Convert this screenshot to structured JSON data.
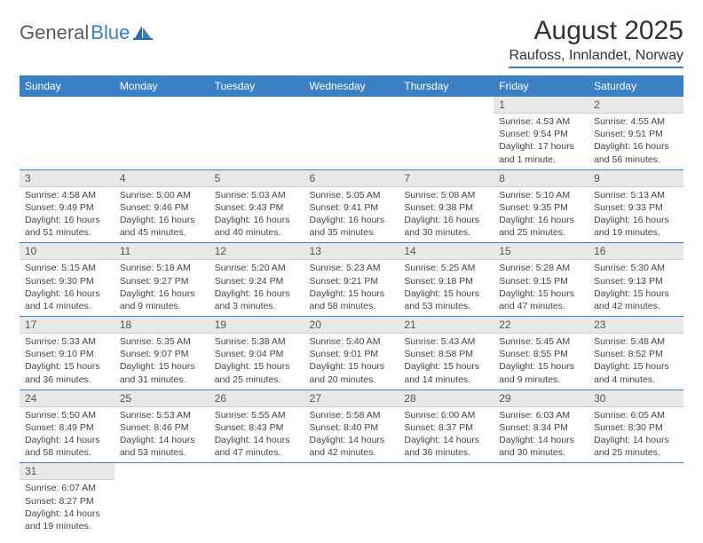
{
  "logo": {
    "part1": "General",
    "part2": "Blue"
  },
  "title": "August 2025",
  "location": "Raufoss, Innlandet, Norway",
  "colors": {
    "brand_blue": "#3b7fc4",
    "header_text": "#ffffff",
    "daynum_bg": "#e8e8e8",
    "text": "#333333",
    "logo_gray": "#5a5a5a"
  },
  "day_headers": [
    "Sunday",
    "Monday",
    "Tuesday",
    "Wednesday",
    "Thursday",
    "Friday",
    "Saturday"
  ],
  "weeks": [
    [
      null,
      null,
      null,
      null,
      null,
      {
        "n": "1",
        "sr": "Sunrise: 4:53 AM",
        "ss": "Sunset: 9:54 PM",
        "d1": "Daylight: 17 hours",
        "d2": "and 1 minute."
      },
      {
        "n": "2",
        "sr": "Sunrise: 4:55 AM",
        "ss": "Sunset: 9:51 PM",
        "d1": "Daylight: 16 hours",
        "d2": "and 56 minutes."
      }
    ],
    [
      {
        "n": "3",
        "sr": "Sunrise: 4:58 AM",
        "ss": "Sunset: 9:49 PM",
        "d1": "Daylight: 16 hours",
        "d2": "and 51 minutes."
      },
      {
        "n": "4",
        "sr": "Sunrise: 5:00 AM",
        "ss": "Sunset: 9:46 PM",
        "d1": "Daylight: 16 hours",
        "d2": "and 45 minutes."
      },
      {
        "n": "5",
        "sr": "Sunrise: 5:03 AM",
        "ss": "Sunset: 9:43 PM",
        "d1": "Daylight: 16 hours",
        "d2": "and 40 minutes."
      },
      {
        "n": "6",
        "sr": "Sunrise: 5:05 AM",
        "ss": "Sunset: 9:41 PM",
        "d1": "Daylight: 16 hours",
        "d2": "and 35 minutes."
      },
      {
        "n": "7",
        "sr": "Sunrise: 5:08 AM",
        "ss": "Sunset: 9:38 PM",
        "d1": "Daylight: 16 hours",
        "d2": "and 30 minutes."
      },
      {
        "n": "8",
        "sr": "Sunrise: 5:10 AM",
        "ss": "Sunset: 9:35 PM",
        "d1": "Daylight: 16 hours",
        "d2": "and 25 minutes."
      },
      {
        "n": "9",
        "sr": "Sunrise: 5:13 AM",
        "ss": "Sunset: 9:33 PM",
        "d1": "Daylight: 16 hours",
        "d2": "and 19 minutes."
      }
    ],
    [
      {
        "n": "10",
        "sr": "Sunrise: 5:15 AM",
        "ss": "Sunset: 9:30 PM",
        "d1": "Daylight: 16 hours",
        "d2": "and 14 minutes."
      },
      {
        "n": "11",
        "sr": "Sunrise: 5:18 AM",
        "ss": "Sunset: 9:27 PM",
        "d1": "Daylight: 16 hours",
        "d2": "and 9 minutes."
      },
      {
        "n": "12",
        "sr": "Sunrise: 5:20 AM",
        "ss": "Sunset: 9:24 PM",
        "d1": "Daylight: 16 hours",
        "d2": "and 3 minutes."
      },
      {
        "n": "13",
        "sr": "Sunrise: 5:23 AM",
        "ss": "Sunset: 9:21 PM",
        "d1": "Daylight: 15 hours",
        "d2": "and 58 minutes."
      },
      {
        "n": "14",
        "sr": "Sunrise: 5:25 AM",
        "ss": "Sunset: 9:18 PM",
        "d1": "Daylight: 15 hours",
        "d2": "and 53 minutes."
      },
      {
        "n": "15",
        "sr": "Sunrise: 5:28 AM",
        "ss": "Sunset: 9:15 PM",
        "d1": "Daylight: 15 hours",
        "d2": "and 47 minutes."
      },
      {
        "n": "16",
        "sr": "Sunrise: 5:30 AM",
        "ss": "Sunset: 9:13 PM",
        "d1": "Daylight: 15 hours",
        "d2": "and 42 minutes."
      }
    ],
    [
      {
        "n": "17",
        "sr": "Sunrise: 5:33 AM",
        "ss": "Sunset: 9:10 PM",
        "d1": "Daylight: 15 hours",
        "d2": "and 36 minutes."
      },
      {
        "n": "18",
        "sr": "Sunrise: 5:35 AM",
        "ss": "Sunset: 9:07 PM",
        "d1": "Daylight: 15 hours",
        "d2": "and 31 minutes."
      },
      {
        "n": "19",
        "sr": "Sunrise: 5:38 AM",
        "ss": "Sunset: 9:04 PM",
        "d1": "Daylight: 15 hours",
        "d2": "and 25 minutes."
      },
      {
        "n": "20",
        "sr": "Sunrise: 5:40 AM",
        "ss": "Sunset: 9:01 PM",
        "d1": "Daylight: 15 hours",
        "d2": "and 20 minutes."
      },
      {
        "n": "21",
        "sr": "Sunrise: 5:43 AM",
        "ss": "Sunset: 8:58 PM",
        "d1": "Daylight: 15 hours",
        "d2": "and 14 minutes."
      },
      {
        "n": "22",
        "sr": "Sunrise: 5:45 AM",
        "ss": "Sunset: 8:55 PM",
        "d1": "Daylight: 15 hours",
        "d2": "and 9 minutes."
      },
      {
        "n": "23",
        "sr": "Sunrise: 5:48 AM",
        "ss": "Sunset: 8:52 PM",
        "d1": "Daylight: 15 hours",
        "d2": "and 4 minutes."
      }
    ],
    [
      {
        "n": "24",
        "sr": "Sunrise: 5:50 AM",
        "ss": "Sunset: 8:49 PM",
        "d1": "Daylight: 14 hours",
        "d2": "and 58 minutes."
      },
      {
        "n": "25",
        "sr": "Sunrise: 5:53 AM",
        "ss": "Sunset: 8:46 PM",
        "d1": "Daylight: 14 hours",
        "d2": "and 53 minutes."
      },
      {
        "n": "26",
        "sr": "Sunrise: 5:55 AM",
        "ss": "Sunset: 8:43 PM",
        "d1": "Daylight: 14 hours",
        "d2": "and 47 minutes."
      },
      {
        "n": "27",
        "sr": "Sunrise: 5:58 AM",
        "ss": "Sunset: 8:40 PM",
        "d1": "Daylight: 14 hours",
        "d2": "and 42 minutes."
      },
      {
        "n": "28",
        "sr": "Sunrise: 6:00 AM",
        "ss": "Sunset: 8:37 PM",
        "d1": "Daylight: 14 hours",
        "d2": "and 36 minutes."
      },
      {
        "n": "29",
        "sr": "Sunrise: 6:03 AM",
        "ss": "Sunset: 8:34 PM",
        "d1": "Daylight: 14 hours",
        "d2": "and 30 minutes."
      },
      {
        "n": "30",
        "sr": "Sunrise: 6:05 AM",
        "ss": "Sunset: 8:30 PM",
        "d1": "Daylight: 14 hours",
        "d2": "and 25 minutes."
      }
    ],
    [
      {
        "n": "31",
        "sr": "Sunrise: 6:07 AM",
        "ss": "Sunset: 8:27 PM",
        "d1": "Daylight: 14 hours",
        "d2": "and 19 minutes."
      },
      null,
      null,
      null,
      null,
      null,
      null
    ]
  ]
}
